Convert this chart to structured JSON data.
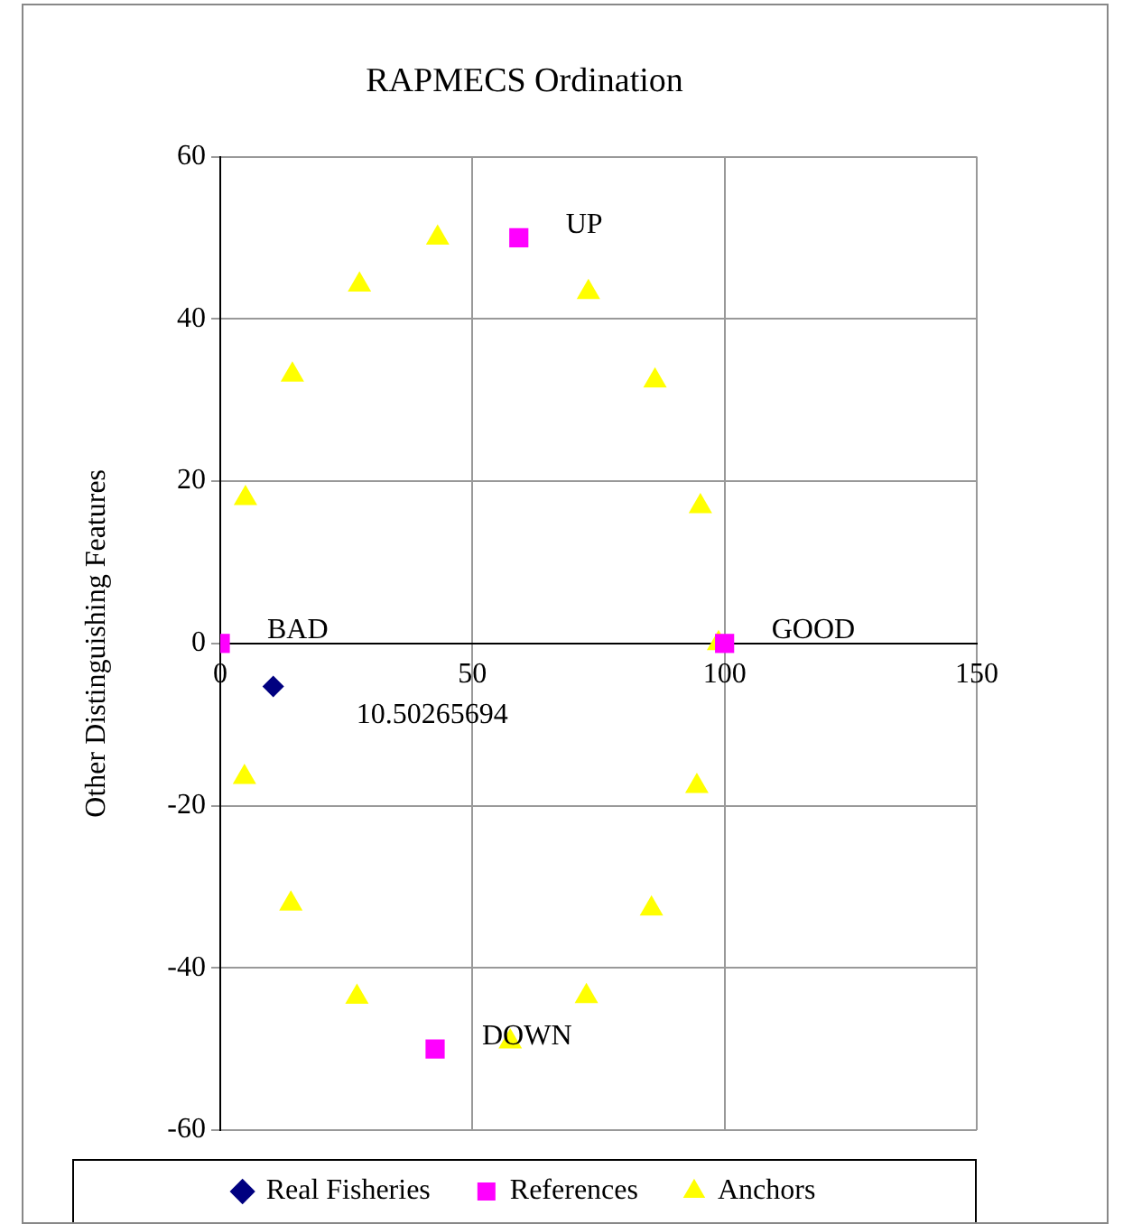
{
  "chart_data": {
    "type": "scatter",
    "title": "RAPMECS Ordination",
    "ylabel": "Other Distinguishing Features",
    "xlim": [
      0,
      150
    ],
    "xticks": [
      0,
      50,
      100,
      150
    ],
    "ylim": [
      -60,
      60
    ],
    "yticks": [
      -60,
      -40,
      -20,
      0,
      20,
      40,
      60
    ],
    "grid": true,
    "legend": "bottom",
    "annotations": [
      {
        "text": "10.50265694",
        "x": 10.50265694,
        "y": -5.3
      }
    ],
    "series": [
      {
        "name": "Real Fisheries",
        "color": "#000080",
        "marker": "diamond",
        "x": [
          10.50265694
        ],
        "values": [
          -5.3
        ]
      },
      {
        "name": "References",
        "color": "#ff00ff",
        "marker": "square",
        "x": [
          0,
          100,
          59.2,
          42.6
        ],
        "values": [
          0,
          0,
          50,
          -50
        ],
        "value_labels": [
          "BAD",
          "GOOD",
          "UP",
          "DOWN"
        ]
      },
      {
        "name": "Anchors",
        "color": "#ffff00",
        "marker": "triangle",
        "x": [
          43.1,
          27.6,
          14.3,
          5.0,
          73.0,
          86.2,
          95.2,
          98.8,
          4.8,
          14.0,
          27.1,
          57.5,
          72.6,
          85.5,
          94.5
        ],
        "values": [
          50,
          44.2,
          33.1,
          17.9,
          43.3,
          32.4,
          16.9,
          0,
          -16.5,
          -32.1,
          -43.6,
          -49.1,
          -43.5,
          -32.7,
          -17.6
        ]
      }
    ]
  }
}
